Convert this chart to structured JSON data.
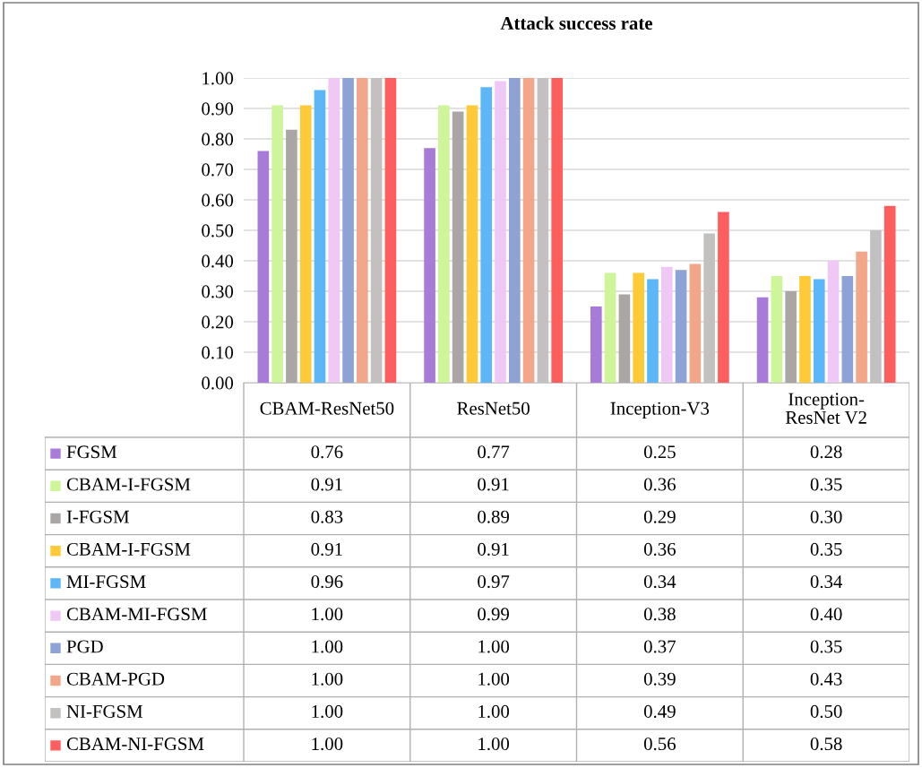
{
  "chart_data": {
    "type": "bar",
    "title": "Attack success rate",
    "categories": [
      "CBAM-ResNet50",
      "ResNet50",
      "Inception-V3",
      "Inception-ResNet V2"
    ],
    "series": [
      {
        "name": "FGSM",
        "color": "#a97bd9",
        "values": [
          0.76,
          0.77,
          0.25,
          0.28
        ],
        "value_labels": [
          "0.76",
          "0.77",
          "0.25",
          "0.28"
        ]
      },
      {
        "name": "CBAM-I-FGSM",
        "color": "#cff59a",
        "values": [
          0.91,
          0.91,
          0.36,
          0.35
        ],
        "value_labels": [
          "0.91",
          "0.91",
          "0.36",
          "0.35"
        ]
      },
      {
        "name": "I-FGSM",
        "color": "#aaa6a6",
        "values": [
          0.83,
          0.89,
          0.29,
          0.3
        ],
        "value_labels": [
          "0.83",
          "0.89",
          "0.29",
          "0.30"
        ]
      },
      {
        "name": "CBAM-I-FGSM",
        "color": "#ffca38",
        "values": [
          0.91,
          0.91,
          0.36,
          0.35
        ],
        "value_labels": [
          "0.91",
          "0.91",
          "0.36",
          "0.35"
        ]
      },
      {
        "name": "MI-FGSM",
        "color": "#5cb6f7",
        "values": [
          0.96,
          0.97,
          0.34,
          0.34
        ],
        "value_labels": [
          "0.96",
          "0.97",
          "0.34",
          "0.34"
        ]
      },
      {
        "name": "CBAM-MI-FGSM",
        "color": "#efc8f5",
        "values": [
          1.0,
          0.99,
          0.38,
          0.4
        ],
        "value_labels": [
          "1.00",
          "0.99",
          "0.38",
          "0.40"
        ]
      },
      {
        "name": "PGD",
        "color": "#8ea2d6",
        "values": [
          1.0,
          1.0,
          0.37,
          0.35
        ],
        "value_labels": [
          "1.00",
          "1.00",
          "0.37",
          "0.35"
        ]
      },
      {
        "name": "CBAM-PGD",
        "color": "#f2a68a",
        "values": [
          1.0,
          1.0,
          0.39,
          0.43
        ],
        "value_labels": [
          "1.00",
          "1.00",
          "0.39",
          "0.43"
        ]
      },
      {
        "name": "NI-FGSM",
        "color": "#c3c0c0",
        "values": [
          1.0,
          1.0,
          0.49,
          0.5
        ],
        "value_labels": [
          "1.00",
          "1.00",
          "0.49",
          "0.50"
        ]
      },
      {
        "name": "CBAM-NI-FGSM",
        "color": "#ff5e5e",
        "values": [
          1.0,
          1.0,
          0.56,
          0.58
        ],
        "value_labels": [
          "1.00",
          "1.00",
          "0.56",
          "0.58"
        ]
      }
    ],
    "ylim": [
      0,
      1.0
    ],
    "yticks": [
      {
        "value": 0,
        "label": "0.00"
      },
      {
        "value": 0.1,
        "label": "0.10"
      },
      {
        "value": 0.2,
        "label": "0.20"
      },
      {
        "value": 0.3,
        "label": "0.30"
      },
      {
        "value": 0.4,
        "label": "0.40"
      },
      {
        "value": 0.5,
        "label": "0.50"
      },
      {
        "value": 0.6,
        "label": "0.60"
      },
      {
        "value": 0.7,
        "label": "0.70"
      },
      {
        "value": 0.8,
        "label": "0.80"
      },
      {
        "value": 0.9,
        "label": "0.90"
      },
      {
        "value": 1.0,
        "label": "1.00"
      }
    ],
    "grid": "y",
    "legend": "bottom"
  }
}
